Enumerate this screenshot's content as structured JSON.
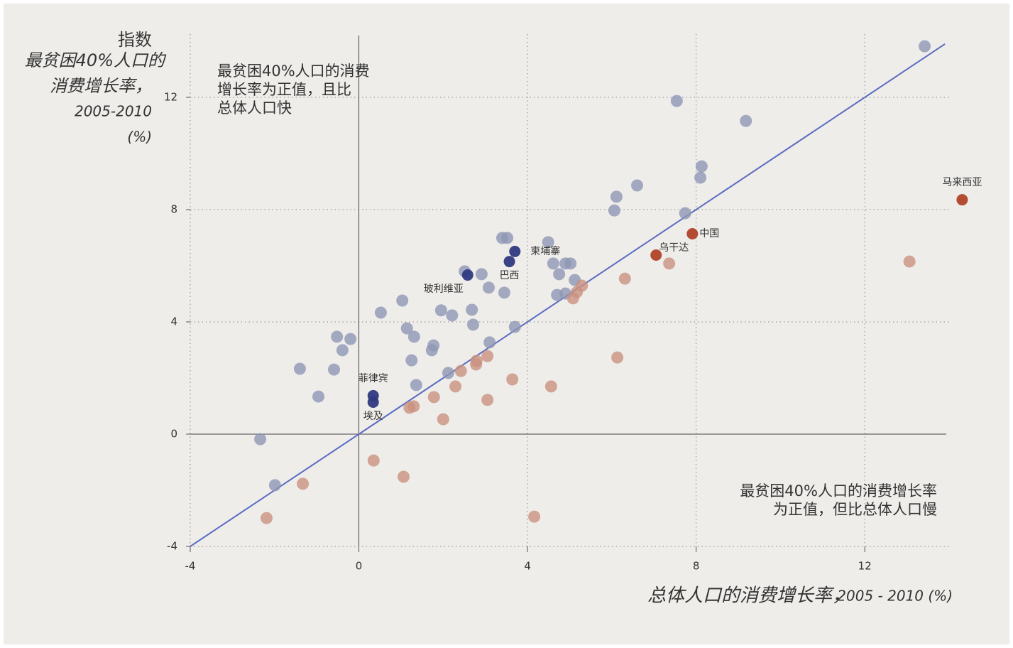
{
  "chart_data": {
    "type": "scatter",
    "y_title": "指数",
    "y_label": [
      "最贫困40%人口的",
      "消费增长率，",
      "2005-2010",
      "(%)"
    ],
    "x_label": "总体人口的消费增长率，",
    "x_label_period": "2005 - 2010 (%)",
    "annotations": [
      {
        "lines": [
          "最贫困40%人口的消费",
          "增长率为正值，且比",
          "总体人口快"
        ]
      },
      {
        "lines": [
          "最贫困40%人口的消费增长率",
          "为正值，但比总体人口慢"
        ]
      }
    ],
    "xlim": [
      -4,
      14
    ],
    "ylim": [
      -4,
      14
    ],
    "xticks": [
      -4,
      0,
      4,
      8,
      12
    ],
    "yticks": [
      -4,
      0,
      4,
      8,
      12
    ],
    "grid": true,
    "reference_line": {
      "color": "#5b6bc0",
      "x": [
        -4,
        13.9
      ],
      "y": [
        -4,
        13.9
      ]
    },
    "series": [
      {
        "color": "#8e96b4",
        "x": [
          13.42,
          7.54,
          9.18,
          8.13,
          8.1,
          6.6,
          6.11,
          6.06,
          7.74,
          3.4,
          3.52,
          4.49,
          4.61,
          4.9,
          5.02,
          4.75,
          5.12,
          2.51,
          2.91,
          3.08,
          3.45,
          4.7,
          4.9,
          1.03,
          0.52,
          1.95,
          2.21,
          2.68,
          2.71,
          3.7,
          1.14,
          1.31,
          -0.52,
          -0.2,
          -0.39,
          1.77,
          1.73,
          3.1,
          1.25,
          -1.4,
          -0.59,
          2.12,
          1.36,
          -0.96,
          -2.34,
          -1.99
        ],
        "y": [
          13.82,
          11.87,
          11.16,
          9.54,
          9.14,
          8.86,
          8.46,
          7.97,
          7.87,
          6.99,
          6.99,
          6.84,
          6.08,
          6.08,
          6.08,
          5.7,
          5.49,
          5.8,
          5.7,
          5.22,
          5.04,
          4.96,
          5.01,
          4.76,
          4.33,
          4.41,
          4.23,
          4.43,
          3.9,
          3.82,
          3.77,
          3.47,
          3.47,
          3.39,
          2.99,
          3.16,
          2.99,
          3.27,
          2.63,
          2.33,
          2.3,
          2.18,
          1.75,
          1.34,
          -0.18,
          -1.82
        ]
      },
      {
        "color": "#c9917f",
        "x": [
          5.29,
          5.17,
          5.08,
          6.31,
          7.36,
          13.06,
          6.13,
          3.05,
          2.79,
          2.78,
          2.42,
          3.64,
          4.56,
          2.29,
          1.78,
          1.3,
          1.2,
          3.05,
          2.0,
          0.35,
          1.06,
          -1.33,
          4.16,
          -2.19
        ],
        "y": [
          5.29,
          5.06,
          4.84,
          5.54,
          6.08,
          6.15,
          2.73,
          2.78,
          2.61,
          2.48,
          2.25,
          1.95,
          1.7,
          1.7,
          1.32,
          0.99,
          0.94,
          1.22,
          0.53,
          -0.94,
          -1.52,
          -1.77,
          -2.94,
          -2.99
        ]
      },
      {
        "color": "#2e3a80",
        "labels": [
          "菲律宾",
          "埃及",
          "玻利维亚",
          "巴西",
          "柬埔寨"
        ],
        "x": [
          0.34,
          0.34,
          2.58,
          3.57,
          3.7
        ],
        "y": [
          1.37,
          1.14,
          5.67,
          6.15,
          6.51
        ]
      },
      {
        "color": "#b0432a",
        "labels": [
          "乌干达",
          "中国",
          "马来西亚"
        ],
        "x": [
          7.05,
          7.91,
          14.31
        ],
        "y": [
          6.38,
          7.14,
          8.35
        ]
      }
    ]
  }
}
